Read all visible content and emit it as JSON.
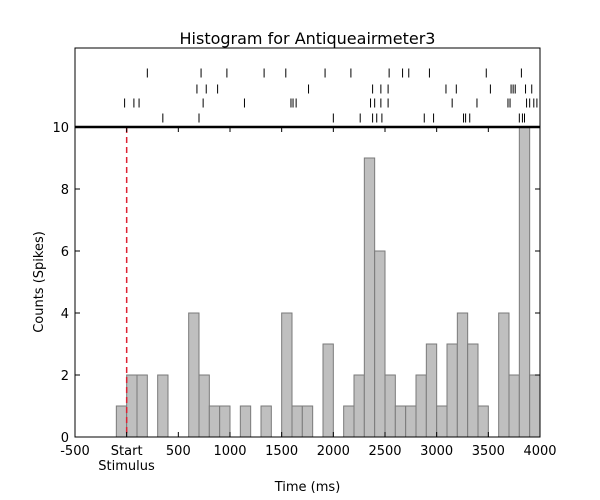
{
  "chart_data": {
    "type": "histogram",
    "title": "Histogram for Antiqueairmeter3",
    "xlabel": "Time (ms)",
    "ylabel": "Counts (Spikes)",
    "xlim": [
      -500,
      4000
    ],
    "ylim": [
      0,
      10
    ],
    "x_ticks": [
      {
        "value": -500,
        "label": "-500"
      },
      {
        "value": 0,
        "label": "Start"
      },
      {
        "value": 500,
        "label": "500"
      },
      {
        "value": 1000,
        "label": "1000"
      },
      {
        "value": 1500,
        "label": "1500"
      },
      {
        "value": 2000,
        "label": "2000"
      },
      {
        "value": 2500,
        "label": "2500"
      },
      {
        "value": 3000,
        "label": "3000"
      },
      {
        "value": 3500,
        "label": "3500"
      },
      {
        "value": 4000,
        "label": "4000"
      }
    ],
    "stimulus_label": "Stimulus",
    "y_ticks": [
      0,
      2,
      4,
      6,
      8,
      10
    ],
    "stimulus_time": 0,
    "bin_width": 100,
    "bins": [
      {
        "x0": -100,
        "count": 1
      },
      {
        "x0": 0,
        "count": 2
      },
      {
        "x0": 100,
        "count": 2
      },
      {
        "x0": 300,
        "count": 2
      },
      {
        "x0": 600,
        "count": 4
      },
      {
        "x0": 700,
        "count": 2
      },
      {
        "x0": 800,
        "count": 1
      },
      {
        "x0": 900,
        "count": 1
      },
      {
        "x0": 1100,
        "count": 1
      },
      {
        "x0": 1300,
        "count": 1
      },
      {
        "x0": 1500,
        "count": 4
      },
      {
        "x0": 1600,
        "count": 1
      },
      {
        "x0": 1700,
        "count": 1
      },
      {
        "x0": 1900,
        "count": 3
      },
      {
        "x0": 2100,
        "count": 1
      },
      {
        "x0": 2200,
        "count": 2
      },
      {
        "x0": 2300,
        "count": 9
      },
      {
        "x0": 2400,
        "count": 6
      },
      {
        "x0": 2500,
        "count": 2
      },
      {
        "x0": 2600,
        "count": 1
      },
      {
        "x0": 2700,
        "count": 1
      },
      {
        "x0": 2800,
        "count": 2
      },
      {
        "x0": 2900,
        "count": 3
      },
      {
        "x0": 3000,
        "count": 1
      },
      {
        "x0": 3100,
        "count": 3
      },
      {
        "x0": 3200,
        "count": 4
      },
      {
        "x0": 3300,
        "count": 3
      },
      {
        "x0": 3400,
        "count": 1
      },
      {
        "x0": 3600,
        "count": 4
      },
      {
        "x0": 3700,
        "count": 2
      },
      {
        "x0": 3800,
        "count": 10
      },
      {
        "x0": 3900,
        "count": 2
      }
    ],
    "raster_trials": [
      [
        200,
        720,
        970,
        1330,
        1540,
        1920,
        2170,
        2540,
        2670,
        2730,
        2930,
        3480,
        3820
      ],
      [
        680,
        770,
        880,
        1760,
        2380,
        2460,
        2530,
        3090,
        3190,
        3520,
        3720,
        3740,
        3760,
        3860,
        3920
      ],
      [
        -20,
        70,
        120,
        740,
        1140,
        1590,
        1610,
        1640,
        2360,
        2400,
        2460,
        2530,
        3150,
        3390,
        3690,
        3710,
        3870,
        3900,
        3940,
        3970
      ],
      [
        350,
        700,
        2000,
        2260,
        2380,
        2420,
        2470,
        2880,
        2970,
        3260,
        3280,
        3320,
        3800,
        3830,
        3850
      ]
    ],
    "grid": false,
    "colors": {
      "bar_fill": "#bfbfbf",
      "bar_edge": "#7a7a7a",
      "stimulus_line": "#dd2233"
    }
  }
}
